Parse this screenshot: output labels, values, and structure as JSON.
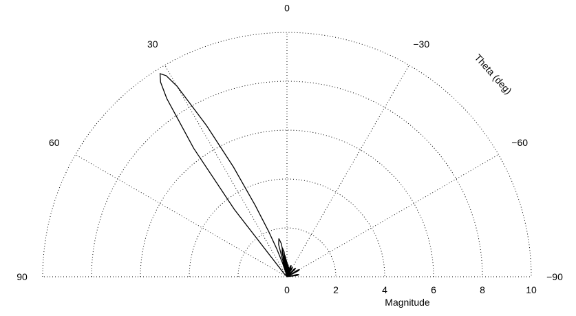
{
  "chart_data": {
    "type": "polar-half",
    "xlabel": "Magnitude",
    "theta_label": "Theta (deg)",
    "radial_ticks": [
      "0",
      "2",
      "4",
      "6",
      "8",
      "10"
    ],
    "radial_range": [
      0,
      10
    ],
    "angle_ticks": [
      {
        "deg": 0,
        "label": "0"
      },
      {
        "deg": 30,
        "label": "30"
      },
      {
        "deg": -30,
        "label": "−30"
      },
      {
        "deg": 60,
        "label": "60"
      },
      {
        "deg": -60,
        "label": "−60"
      },
      {
        "deg": 90,
        "label": "90"
      },
      {
        "deg": -90,
        "label": "−90"
      }
    ],
    "grid": true,
    "series": [
      {
        "pattern_samples": {
          "theta_deg": [
            42,
            38,
            36,
            34,
            33,
            32,
            31,
            30,
            28,
            26,
            24,
            22,
            20,
            18,
            16,
            12,
            9,
            6,
            3,
            0,
            -5,
            -10,
            -20,
            -30,
            -45,
            -60,
            -80
          ],
          "magnitude": [
            0.2,
            3.5,
            6.5,
            8.8,
            9.5,
            9.8,
            9.6,
            9.0,
            7.0,
            5.0,
            3.2,
            2.0,
            1.2,
            0.6,
            0.2,
            1.6,
            1.2,
            0.9,
            0.7,
            0.6,
            0.5,
            0.4,
            0.5,
            0.45,
            0.5,
            0.6,
            0.5
          ]
        }
      }
    ]
  }
}
